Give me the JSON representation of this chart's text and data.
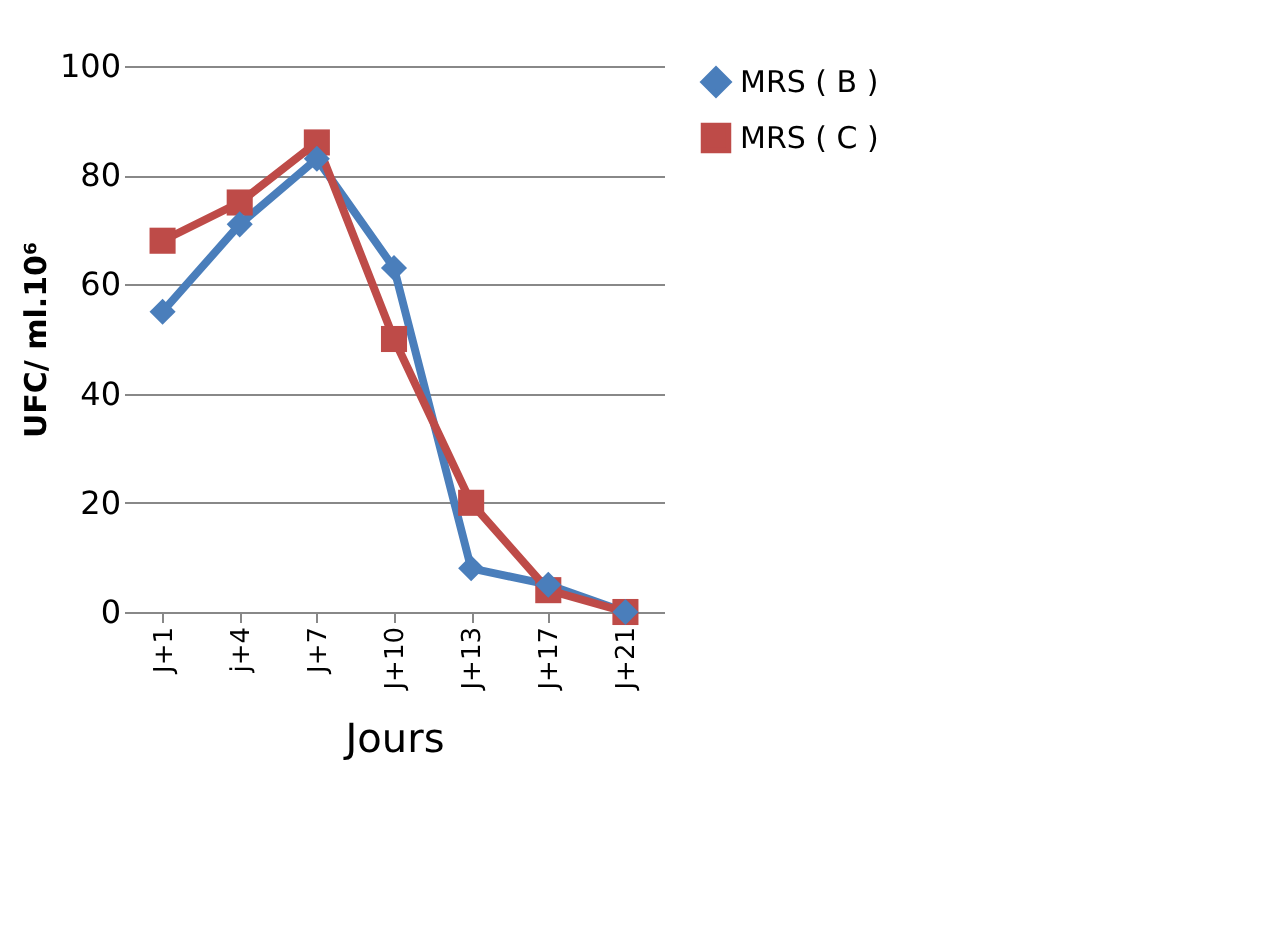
{
  "chart_data": {
    "type": "line",
    "xlabel": "Jours",
    "ylabel": "UFC/ ml.10⁶",
    "categories": [
      "J+1",
      "j+4",
      "J+7",
      "J+10",
      "J+13",
      "J+17",
      "J+21"
    ],
    "series": [
      {
        "name": "MRS ( B )",
        "color": "#4a7ebb",
        "marker": "diamond",
        "values": [
          55,
          71,
          83,
          63,
          8,
          5,
          0
        ]
      },
      {
        "name": "MRS ( C )",
        "color": "#be4b48",
        "marker": "square",
        "values": [
          68,
          75,
          86,
          50,
          20,
          4,
          0
        ]
      }
    ],
    "ylim": [
      0,
      100
    ],
    "yticks": [
      0,
      20,
      40,
      60,
      80,
      100
    ],
    "grid": "y",
    "legend": "right",
    "line_style": "solid"
  }
}
